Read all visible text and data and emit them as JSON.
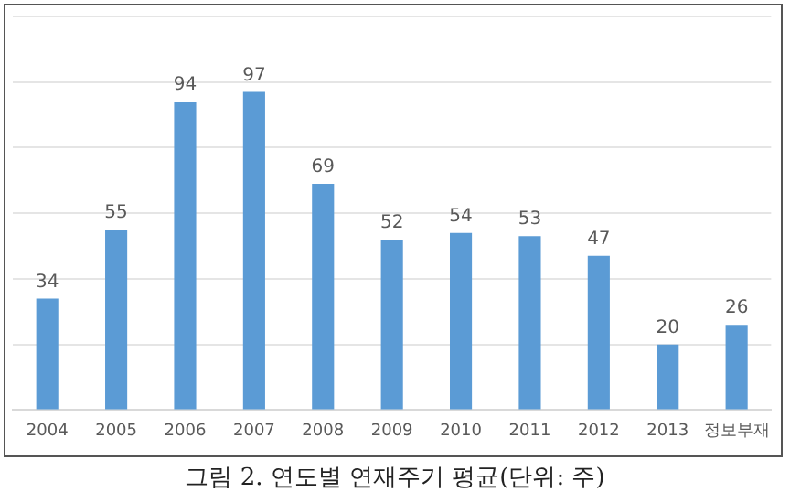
{
  "chart_data": {
    "type": "bar",
    "categories": [
      "2004",
      "2005",
      "2006",
      "2007",
      "2008",
      "2009",
      "2010",
      "2011",
      "2012",
      "2013",
      "정보부재"
    ],
    "values": [
      34,
      55,
      94,
      97,
      69,
      52,
      54,
      53,
      47,
      20,
      26
    ],
    "color": "#5b9bd5",
    "ylim": [
      0,
      120
    ],
    "yticks": [
      {
        "value": 0,
        "label": null
      },
      {
        "value": 20,
        "label": null
      },
      {
        "value": 40,
        "label": null
      },
      {
        "value": 60,
        "label": null
      },
      {
        "value": 80,
        "label": null
      },
      {
        "value": 100,
        "label": null
      },
      {
        "value": 120,
        "label": null
      }
    ],
    "tick_labels": "x",
    "grid": "y",
    "data_labels": true,
    "legend": false,
    "annotations": [
      "그림 2. 연도별 연재주기 평균(단위: 주)"
    ]
  }
}
